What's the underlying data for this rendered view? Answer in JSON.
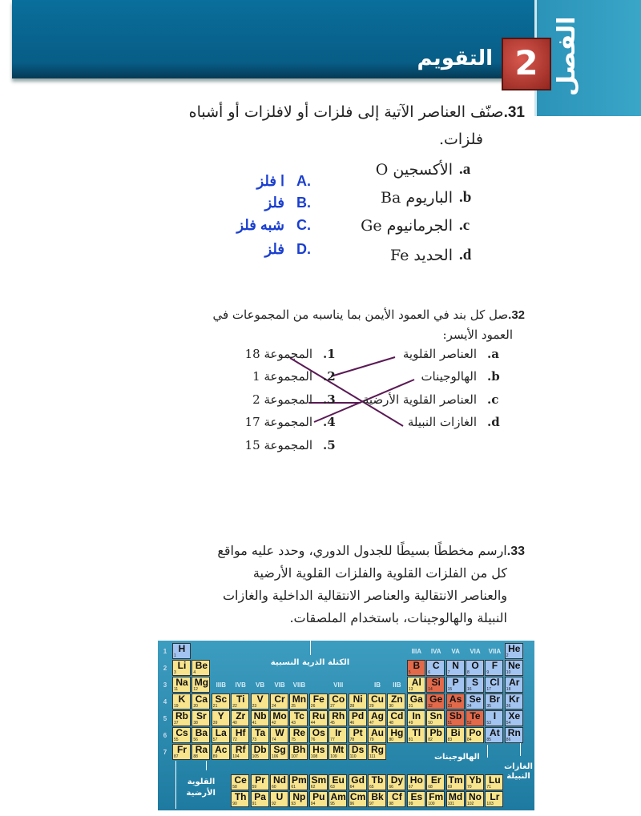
{
  "header": {
    "chapter_word": "الفصل",
    "chapter_number": "2",
    "title": "التقويم"
  },
  "q31": {
    "number": "31.",
    "text_line1": "صنّف العناصر الآتية إلى فلزات أو لافلزات أو أشباه",
    "text_line2": "فلزات.",
    "items": [
      {
        "letter": "a.",
        "text": "الأكسجين O"
      },
      {
        "letter": "b.",
        "text": "الباريوم Ba"
      },
      {
        "letter": "c.",
        "text": "الجرمانيوم Ge"
      },
      {
        "letter": "d.",
        "text": "الحديد Fe"
      }
    ],
    "answers": [
      {
        "letter": "A.",
        "text": "ا فلز"
      },
      {
        "letter": "B.",
        "text": "فلز"
      },
      {
        "letter": "C.",
        "text": "شبه فلز"
      },
      {
        "letter": "D.",
        "text": "فلز"
      }
    ],
    "answer_color": "#1a3fd0"
  },
  "q32": {
    "number": "32.",
    "text_line1": "صل كل بند في العمود الأيمن بما يناسبه من المجموعات في",
    "text_line2": "العمود الأيسر:",
    "right": [
      {
        "letter": "a.",
        "text": "العناصر القلوية"
      },
      {
        "letter": "b.",
        "text": "الهالوجينات"
      },
      {
        "letter": "c.",
        "text": "العناصر القلوية الأرضية"
      },
      {
        "letter": "d.",
        "text": "الغازات النبيلة"
      }
    ],
    "left": [
      {
        "num": "1.",
        "text": "المجموعة 18"
      },
      {
        "num": "2.",
        "text": "المجموعة 1"
      },
      {
        "num": "3.",
        "text": "المجموعة 2"
      },
      {
        "num": "4.",
        "text": "المجموعة 17"
      },
      {
        "num": "5.",
        "text": "المجموعة 15"
      }
    ],
    "matches": [
      [
        "a",
        "2"
      ],
      [
        "b",
        "4"
      ],
      [
        "c",
        "3"
      ],
      [
        "d",
        "1"
      ]
    ],
    "line_color": "#5a1a55"
  },
  "q33": {
    "number": "33.",
    "lines": [
      "ارسم مخططًا بسيطًا للجدول الدوري، وحدد عليه مواقع",
      "كل من الفلزات القلوية والفلزات القلوية الأرضية",
      "والعناصر الانتقالية والعناصر الانتقالية الداخلية والغازات",
      "النبيلة والهالوجينات، باستخدام الملصقات."
    ]
  },
  "periodic_table": {
    "colors": {
      "metal": "#f7e48c",
      "nonmetal": "#a3c4f0",
      "metalloid": "#e2694a",
      "background": "#2b8cb2"
    },
    "labels": {
      "atomic_mass": "الكتلة الذرية النسبية",
      "halogens": "الهالوجينات",
      "noble_gases": "الغازات النبيلة",
      "alkaline_earth": "القلوية الأرضية"
    },
    "periods": [
      "1",
      "2",
      "3",
      "4",
      "5",
      "6",
      "7"
    ],
    "group_labels_a": [
      "IIIA",
      "IVA",
      "VA",
      "VIA",
      "VIIA"
    ],
    "group_labels_b": [
      "IIIB",
      "IVB",
      "VB",
      "VIB",
      "VIIB",
      "VIII",
      "IB",
      "IIB"
    ],
    "elements": [
      [
        "H",
        1,
        1,
        1,
        "n"
      ],
      [
        "He",
        2,
        18,
        1,
        "n"
      ],
      [
        "Li",
        3,
        1,
        2,
        "m"
      ],
      [
        "Be",
        4,
        2,
        2,
        "m"
      ],
      [
        "B",
        5,
        13,
        2,
        "x"
      ],
      [
        "C",
        6,
        14,
        2,
        "n"
      ],
      [
        "N",
        7,
        15,
        2,
        "n"
      ],
      [
        "O",
        8,
        16,
        2,
        "n"
      ],
      [
        "F",
        9,
        17,
        2,
        "n"
      ],
      [
        "Ne",
        10,
        18,
        2,
        "n"
      ],
      [
        "Na",
        11,
        1,
        3,
        "m"
      ],
      [
        "Mg",
        12,
        2,
        3,
        "m"
      ],
      [
        "Al",
        13,
        13,
        3,
        "m"
      ],
      [
        "Si",
        14,
        14,
        3,
        "x"
      ],
      [
        "P",
        15,
        15,
        3,
        "n"
      ],
      [
        "S",
        16,
        16,
        3,
        "n"
      ],
      [
        "Cl",
        17,
        17,
        3,
        "n"
      ],
      [
        "Ar",
        18,
        18,
        3,
        "n"
      ],
      [
        "K",
        19,
        1,
        4,
        "m"
      ],
      [
        "Ca",
        20,
        2,
        4,
        "m"
      ],
      [
        "Sc",
        21,
        3,
        4,
        "m"
      ],
      [
        "Ti",
        22,
        4,
        4,
        "m"
      ],
      [
        "V",
        23,
        5,
        4,
        "m"
      ],
      [
        "Cr",
        24,
        6,
        4,
        "m"
      ],
      [
        "Mn",
        25,
        7,
        4,
        "m"
      ],
      [
        "Fe",
        26,
        8,
        4,
        "m"
      ],
      [
        "Co",
        27,
        9,
        4,
        "m"
      ],
      [
        "Ni",
        28,
        10,
        4,
        "m"
      ],
      [
        "Cu",
        29,
        11,
        4,
        "m"
      ],
      [
        "Zn",
        30,
        12,
        4,
        "m"
      ],
      [
        "Ga",
        31,
        13,
        4,
        "m"
      ],
      [
        "Ge",
        32,
        14,
        4,
        "x"
      ],
      [
        "As",
        33,
        15,
        4,
        "x"
      ],
      [
        "Se",
        34,
        16,
        4,
        "n"
      ],
      [
        "Br",
        35,
        17,
        4,
        "n"
      ],
      [
        "Kr",
        36,
        18,
        4,
        "n"
      ],
      [
        "Rb",
        37,
        1,
        5,
        "m"
      ],
      [
        "Sr",
        38,
        2,
        5,
        "m"
      ],
      [
        "Y",
        39,
        3,
        5,
        "m"
      ],
      [
        "Zr",
        40,
        4,
        5,
        "m"
      ],
      [
        "Nb",
        41,
        5,
        5,
        "m"
      ],
      [
        "Mo",
        42,
        6,
        5,
        "m"
      ],
      [
        "Tc",
        43,
        7,
        5,
        "m"
      ],
      [
        "Ru",
        44,
        8,
        5,
        "m"
      ],
      [
        "Rh",
        45,
        9,
        5,
        "m"
      ],
      [
        "Pd",
        46,
        10,
        5,
        "m"
      ],
      [
        "Ag",
        47,
        11,
        5,
        "m"
      ],
      [
        "Cd",
        48,
        12,
        5,
        "m"
      ],
      [
        "In",
        49,
        13,
        5,
        "m"
      ],
      [
        "Sn",
        50,
        14,
        5,
        "m"
      ],
      [
        "Sb",
        51,
        15,
        5,
        "x"
      ],
      [
        "Te",
        52,
        16,
        5,
        "x"
      ],
      [
        "I",
        53,
        17,
        5,
        "n"
      ],
      [
        "Xe",
        54,
        18,
        5,
        "n"
      ],
      [
        "Cs",
        55,
        1,
        6,
        "m"
      ],
      [
        "Ba",
        56,
        2,
        6,
        "m"
      ],
      [
        "La",
        57,
        3,
        6,
        "m"
      ],
      [
        "Hf",
        72,
        4,
        6,
        "m"
      ],
      [
        "Ta",
        73,
        5,
        6,
        "m"
      ],
      [
        "W",
        74,
        6,
        6,
        "m"
      ],
      [
        "Re",
        75,
        7,
        6,
        "m"
      ],
      [
        "Os",
        76,
        8,
        6,
        "m"
      ],
      [
        "Ir",
        77,
        9,
        6,
        "m"
      ],
      [
        "Pt",
        78,
        10,
        6,
        "m"
      ],
      [
        "Au",
        79,
        11,
        6,
        "m"
      ],
      [
        "Hg",
        80,
        12,
        6,
        "m"
      ],
      [
        "Tl",
        81,
        13,
        6,
        "m"
      ],
      [
        "Pb",
        82,
        14,
        6,
        "m"
      ],
      [
        "Bi",
        83,
        15,
        6,
        "m"
      ],
      [
        "Po",
        84,
        16,
        6,
        "m"
      ],
      [
        "At",
        85,
        17,
        6,
        "n"
      ],
      [
        "Rn",
        86,
        18,
        6,
        "n"
      ],
      [
        "Fr",
        87,
        1,
        7,
        "m"
      ],
      [
        "Ra",
        88,
        2,
        7,
        "m"
      ],
      [
        "Ac",
        89,
        3,
        7,
        "m"
      ],
      [
        "Rf",
        104,
        4,
        7,
        "m"
      ],
      [
        "Db",
        105,
        5,
        7,
        "m"
      ],
      [
        "Sg",
        106,
        6,
        7,
        "m"
      ],
      [
        "Bh",
        107,
        7,
        7,
        "m"
      ],
      [
        "Hs",
        108,
        8,
        7,
        "m"
      ],
      [
        "Mt",
        109,
        9,
        7,
        "m"
      ],
      [
        "Ds",
        110,
        10,
        7,
        "m"
      ],
      [
        "Rg",
        111,
        11,
        7,
        "m"
      ]
    ],
    "lanthanides": [
      [
        "Ce",
        58
      ],
      [
        "Pr",
        59
      ],
      [
        "Nd",
        60
      ],
      [
        "Pm",
        61
      ],
      [
        "Sm",
        62
      ],
      [
        "Eu",
        63
      ],
      [
        "Gd",
        64
      ],
      [
        "Tb",
        65
      ],
      [
        "Dy",
        66
      ],
      [
        "Ho",
        67
      ],
      [
        "Er",
        68
      ],
      [
        "Tm",
        69
      ],
      [
        "Yb",
        70
      ],
      [
        "Lu",
        71
      ]
    ],
    "actinides": [
      [
        "Th",
        90
      ],
      [
        "Pa",
        91
      ],
      [
        "U",
        92
      ],
      [
        "Np",
        93
      ],
      [
        "Pu",
        94
      ],
      [
        "Am",
        95
      ],
      [
        "Cm",
        96
      ],
      [
        "Bk",
        97
      ],
      [
        "Cf",
        98
      ],
      [
        "Es",
        99
      ],
      [
        "Fm",
        100
      ],
      [
        "Md",
        101
      ],
      [
        "No",
        102
      ],
      [
        "Lr",
        103
      ]
    ]
  }
}
